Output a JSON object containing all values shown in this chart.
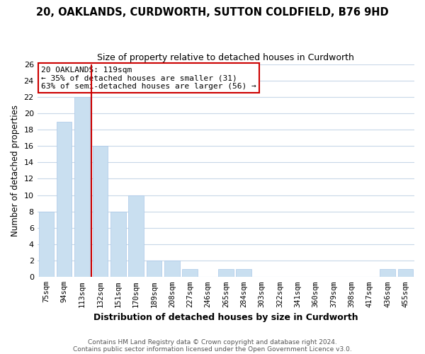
{
  "title": "20, OAKLANDS, CURDWORTH, SUTTON COLDFIELD, B76 9HD",
  "subtitle": "Size of property relative to detached houses in Curdworth",
  "xlabel": "Distribution of detached houses by size in Curdworth",
  "ylabel": "Number of detached properties",
  "bar_labels": [
    "75sqm",
    "94sqm",
    "113sqm",
    "132sqm",
    "151sqm",
    "170sqm",
    "189sqm",
    "208sqm",
    "227sqm",
    "246sqm",
    "265sqm",
    "284sqm",
    "303sqm",
    "322sqm",
    "341sqm",
    "360sqm",
    "379sqm",
    "398sqm",
    "417sqm",
    "436sqm",
    "455sqm"
  ],
  "bar_values": [
    8,
    19,
    22,
    16,
    8,
    10,
    2,
    2,
    1,
    0,
    1,
    1,
    0,
    0,
    0,
    0,
    0,
    0,
    0,
    1,
    1
  ],
  "bar_color": "#c9dff0",
  "bar_edge_color": "#aac8e8",
  "vline_index": 2,
  "vline_color": "#cc0000",
  "annotation_line1": "20 OAKLANDS: 119sqm",
  "annotation_line2": "← 35% of detached houses are smaller (31)",
  "annotation_line3": "63% of semi-detached houses are larger (56) →",
  "annotation_box_color": "#ffffff",
  "annotation_box_edge": "#cc0000",
  "ylim": [
    0,
    26
  ],
  "yticks": [
    0,
    2,
    4,
    6,
    8,
    10,
    12,
    14,
    16,
    18,
    20,
    22,
    24,
    26
  ],
  "footer_line1": "Contains HM Land Registry data © Crown copyright and database right 2024.",
  "footer_line2": "Contains public sector information licensed under the Open Government Licence v3.0.",
  "bg_color": "#ffffff",
  "grid_color": "#c8d8e8",
  "title_fontsize": 10.5,
  "subtitle_fontsize": 9,
  "ylabel_fontsize": 8.5,
  "xlabel_fontsize": 9
}
